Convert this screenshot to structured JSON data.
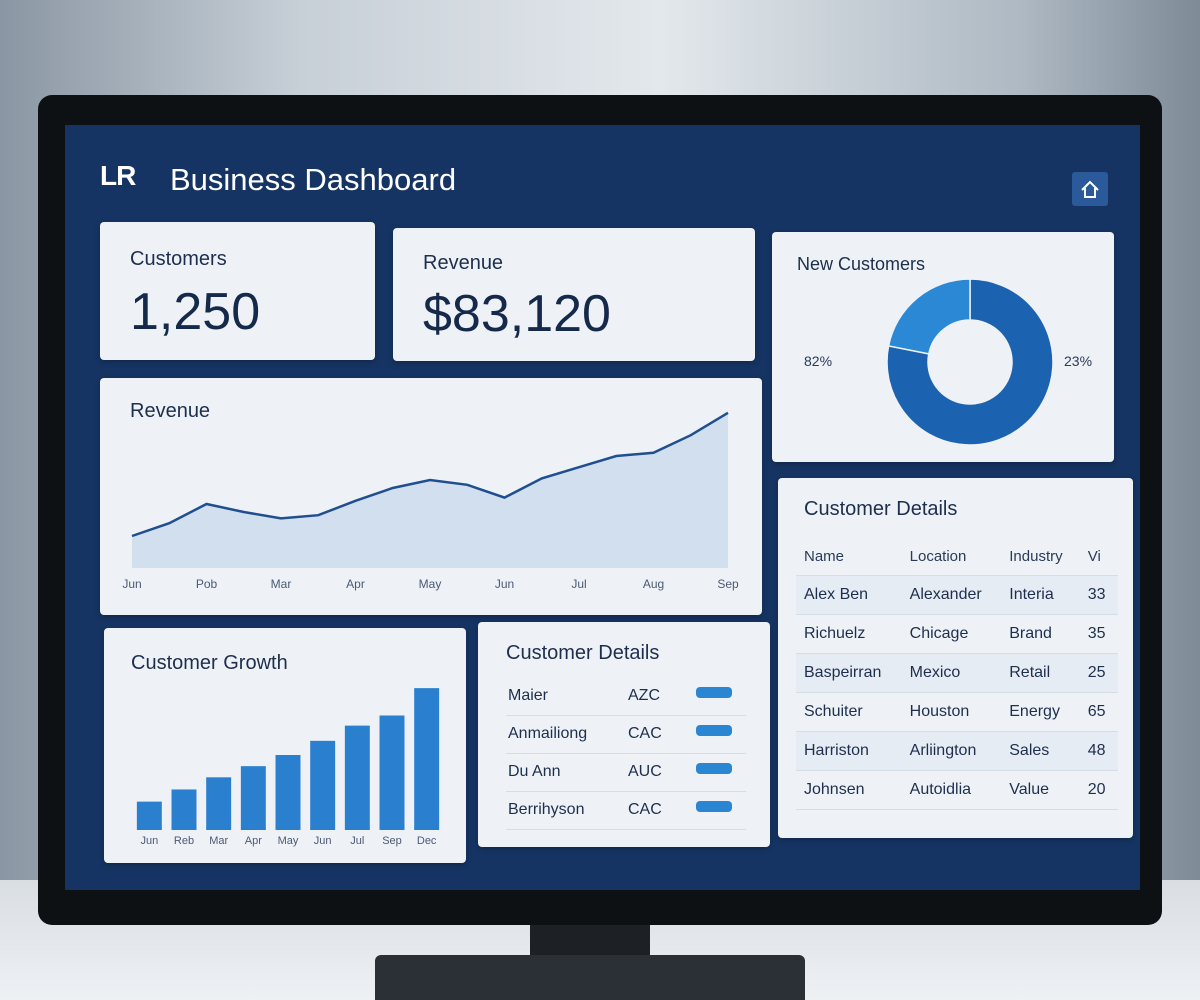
{
  "header": {
    "logo": "LR",
    "title": "Business Dashboard"
  },
  "kpis": [
    {
      "label": "Customers",
      "value": "1,250"
    },
    {
      "label": "Revenue",
      "value": "$83,120"
    }
  ],
  "revenue_chart": {
    "type": "line",
    "title": "Revenue",
    "categories": [
      "Jun",
      null,
      "Pob",
      null,
      "Mar",
      null,
      "Apr",
      null,
      "May",
      null,
      "Jun",
      null,
      "Jul",
      null,
      "Aug",
      null,
      "Sep"
    ],
    "values": [
      20,
      28,
      40,
      35,
      31,
      33,
      42,
      50,
      55,
      52,
      44,
      56,
      63,
      70,
      72,
      83,
      97
    ],
    "color": "#1f4f8f",
    "ylim": [
      0,
      100
    ]
  },
  "new_customers": {
    "type": "pie",
    "title": "New Customers",
    "values": [
      82,
      23
    ],
    "value_labels": [
      "82%",
      "23%"
    ],
    "colors": [
      "#1b62b0",
      "#2a88d4"
    ]
  },
  "customer_growth": {
    "type": "bar",
    "title": "Customer Growth",
    "categories": [
      "Jun",
      "Reb",
      "Mar",
      "Apr",
      "May",
      "Jun",
      "Jul",
      "Sep",
      "Dec"
    ],
    "values": [
      28,
      40,
      52,
      63,
      74,
      88,
      103,
      113,
      140
    ],
    "color": "#2a7fcf",
    "ylim": [
      0,
      150
    ]
  },
  "customer_list": {
    "title": "Customer Details",
    "rows": [
      [
        "Maier",
        "AZC"
      ],
      [
        "Anmailiong",
        "CAC"
      ],
      [
        "Du Ann",
        "AUC"
      ],
      [
        "Berrihyson",
        "CAC"
      ]
    ]
  },
  "customer_table": {
    "title": "Customer Details",
    "columns": [
      "Name",
      "Location",
      "Industry",
      "Vi"
    ],
    "rows": [
      [
        "Alex Ben",
        "Alexander",
        "Interia",
        33
      ],
      [
        "Richuelz",
        "Chicage",
        "Brand",
        35
      ],
      [
        "Baspeirran",
        "Mexico",
        "Retail",
        25
      ],
      [
        "Schuiter",
        "Houston",
        "Energy",
        65
      ],
      [
        "Harriston",
        "Arliington",
        "Sales",
        48
      ],
      [
        "Johnsen",
        "Autoidlia",
        "Value",
        20
      ]
    ]
  }
}
